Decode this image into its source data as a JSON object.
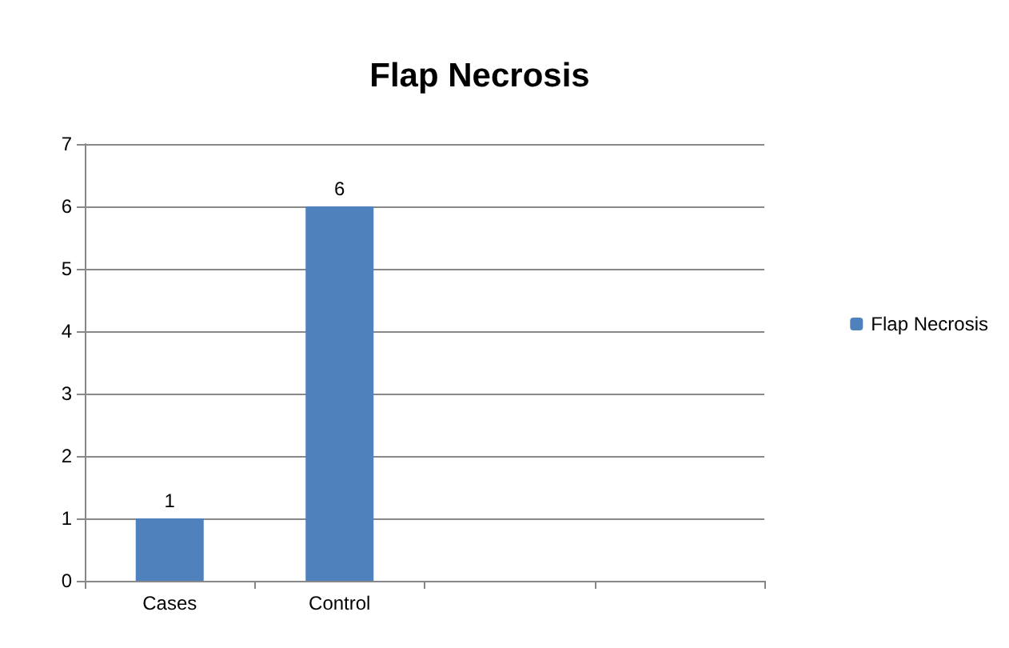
{
  "chart_data": {
    "type": "bar",
    "title": "Flap Necrosis",
    "categories": [
      "Cases",
      "Control",
      null,
      null
    ],
    "series": [
      {
        "name": "Flap Necrosis",
        "color": "#4f81bd",
        "values": [
          1,
          6,
          null,
          null
        ]
      }
    ],
    "ylim": [
      0,
      7
    ],
    "yticks": [
      0,
      1,
      2,
      3,
      4,
      5,
      6,
      7
    ],
    "grid": "y",
    "legend": "right",
    "data_labels": true
  }
}
